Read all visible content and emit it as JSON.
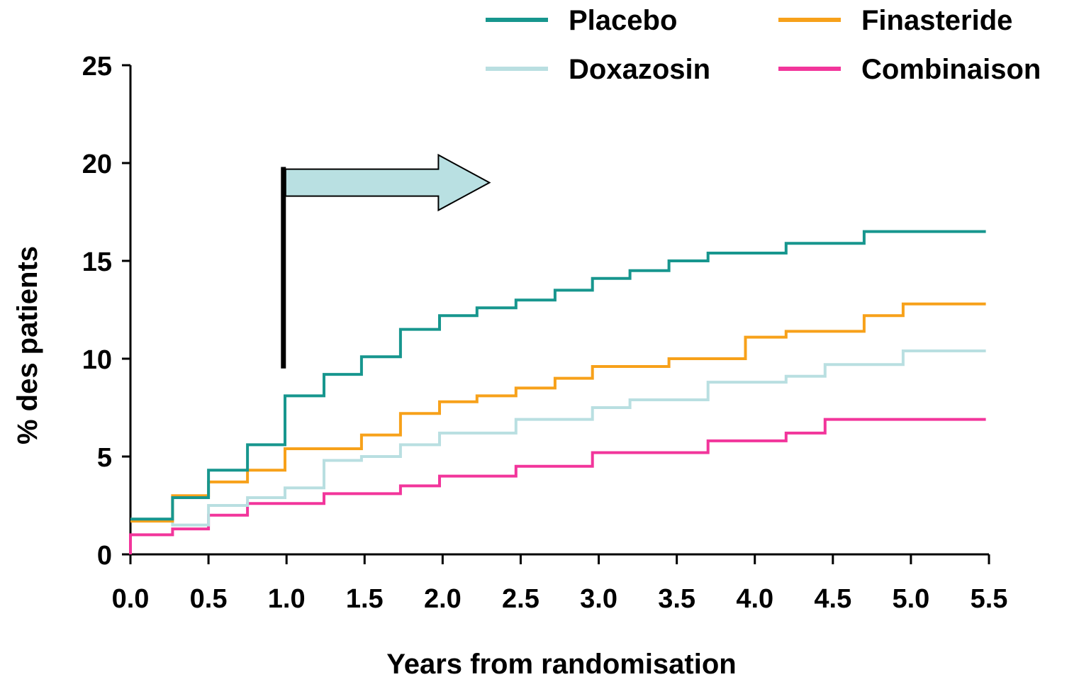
{
  "chart_data": {
    "type": "line",
    "title": "",
    "xlabel": "Years from randomisation",
    "ylabel": "% des patients",
    "xlim": [
      0,
      5.5
    ],
    "ylim": [
      0,
      25
    ],
    "xticks": [
      "0.0",
      "0.5",
      "1.0",
      "1.5",
      "2.0",
      "2.5",
      "3.0",
      "3.5",
      "4.0",
      "4.5",
      "5.0",
      "5.5"
    ],
    "yticks": [
      "0",
      "5",
      "10",
      "15",
      "20",
      "25"
    ],
    "grid": false,
    "legend_position": "top-right",
    "step": true,
    "series": [
      {
        "name": "Placebo",
        "color": "#17968e",
        "points": [
          [
            0,
            1.8
          ],
          [
            0.27,
            1.8
          ],
          [
            0.27,
            2.9
          ],
          [
            0.5,
            2.9
          ],
          [
            0.5,
            4.3
          ],
          [
            0.75,
            4.3
          ],
          [
            0.75,
            5.6
          ],
          [
            0.99,
            5.6
          ],
          [
            0.99,
            8.1
          ],
          [
            1.24,
            8.1
          ],
          [
            1.24,
            9.2
          ],
          [
            1.48,
            9.2
          ],
          [
            1.48,
            10.1
          ],
          [
            1.73,
            10.1
          ],
          [
            1.73,
            11.5
          ],
          [
            1.98,
            11.5
          ],
          [
            1.98,
            12.2
          ],
          [
            2.22,
            12.2
          ],
          [
            2.22,
            12.6
          ],
          [
            2.47,
            12.6
          ],
          [
            2.47,
            13.0
          ],
          [
            2.72,
            13.0
          ],
          [
            2.72,
            13.5
          ],
          [
            2.96,
            13.5
          ],
          [
            2.96,
            14.1
          ],
          [
            3.2,
            14.1
          ],
          [
            3.2,
            14.5
          ],
          [
            3.45,
            14.5
          ],
          [
            3.45,
            15.0
          ],
          [
            3.7,
            15.0
          ],
          [
            3.7,
            15.4
          ],
          [
            4.2,
            15.4
          ],
          [
            4.2,
            15.9
          ],
          [
            4.7,
            15.9
          ],
          [
            4.7,
            16.5
          ],
          [
            5.48,
            16.5
          ]
        ]
      },
      {
        "name": "Finasteride",
        "color": "#f7a11a",
        "points": [
          [
            0,
            1.7
          ],
          [
            0.27,
            1.7
          ],
          [
            0.27,
            3.0
          ],
          [
            0.5,
            3.0
          ],
          [
            0.5,
            3.7
          ],
          [
            0.75,
            3.7
          ],
          [
            0.75,
            4.3
          ],
          [
            0.99,
            4.3
          ],
          [
            0.99,
            5.4
          ],
          [
            1.48,
            5.4
          ],
          [
            1.48,
            6.1
          ],
          [
            1.73,
            6.1
          ],
          [
            1.73,
            7.2
          ],
          [
            1.98,
            7.2
          ],
          [
            1.98,
            7.8
          ],
          [
            2.22,
            7.8
          ],
          [
            2.22,
            8.1
          ],
          [
            2.47,
            8.1
          ],
          [
            2.47,
            8.5
          ],
          [
            2.72,
            8.5
          ],
          [
            2.72,
            9.0
          ],
          [
            2.96,
            9.0
          ],
          [
            2.96,
            9.6
          ],
          [
            3.45,
            9.6
          ],
          [
            3.45,
            10.0
          ],
          [
            3.94,
            10.0
          ],
          [
            3.94,
            11.1
          ],
          [
            4.2,
            11.1
          ],
          [
            4.2,
            11.4
          ],
          [
            4.7,
            11.4
          ],
          [
            4.7,
            12.2
          ],
          [
            4.95,
            12.2
          ],
          [
            4.95,
            12.8
          ],
          [
            5.48,
            12.8
          ]
        ]
      },
      {
        "name": "Doxazosin",
        "color": "#b9dfe1",
        "points": [
          [
            0,
            1.8
          ],
          [
            0.27,
            1.8
          ],
          [
            0.27,
            1.5
          ],
          [
            0.5,
            1.5
          ],
          [
            0.5,
            2.5
          ],
          [
            0.75,
            2.5
          ],
          [
            0.75,
            2.9
          ],
          [
            0.99,
            2.9
          ],
          [
            0.99,
            3.4
          ],
          [
            1.24,
            3.4
          ],
          [
            1.24,
            4.8
          ],
          [
            1.48,
            4.8
          ],
          [
            1.48,
            5.0
          ],
          [
            1.73,
            5.0
          ],
          [
            1.73,
            5.6
          ],
          [
            1.98,
            5.6
          ],
          [
            1.98,
            6.2
          ],
          [
            2.47,
            6.2
          ],
          [
            2.47,
            6.9
          ],
          [
            2.96,
            6.9
          ],
          [
            2.96,
            7.5
          ],
          [
            3.2,
            7.5
          ],
          [
            3.2,
            7.9
          ],
          [
            3.7,
            7.9
          ],
          [
            3.7,
            8.8
          ],
          [
            4.2,
            8.8
          ],
          [
            4.2,
            9.1
          ],
          [
            4.45,
            9.1
          ],
          [
            4.45,
            9.7
          ],
          [
            4.95,
            9.7
          ],
          [
            4.95,
            10.4
          ],
          [
            5.48,
            10.4
          ]
        ]
      },
      {
        "name": "Combinaison",
        "color": "#f2359b",
        "points": [
          [
            0,
            0
          ],
          [
            0,
            1.0
          ],
          [
            0.27,
            1.0
          ],
          [
            0.27,
            1.3
          ],
          [
            0.5,
            1.3
          ],
          [
            0.5,
            2.0
          ],
          [
            0.75,
            2.0
          ],
          [
            0.75,
            2.6
          ],
          [
            1.24,
            2.6
          ],
          [
            1.24,
            3.1
          ],
          [
            1.73,
            3.1
          ],
          [
            1.73,
            3.5
          ],
          [
            1.98,
            3.5
          ],
          [
            1.98,
            4.0
          ],
          [
            2.47,
            4.0
          ],
          [
            2.47,
            4.5
          ],
          [
            2.96,
            4.5
          ],
          [
            2.96,
            5.2
          ],
          [
            3.7,
            5.2
          ],
          [
            3.7,
            5.8
          ],
          [
            4.2,
            5.8
          ],
          [
            4.2,
            6.2
          ],
          [
            4.45,
            6.2
          ],
          [
            4.45,
            6.9
          ],
          [
            5.48,
            6.9
          ]
        ]
      }
    ],
    "annotations": {
      "marker_line_x": 0.98,
      "marker_line_y": [
        9.5,
        19.8
      ],
      "arrow_x": [
        0.98,
        2.3
      ],
      "arrow_y": 19.0,
      "arrow_fill": "#b9e0e2"
    }
  }
}
